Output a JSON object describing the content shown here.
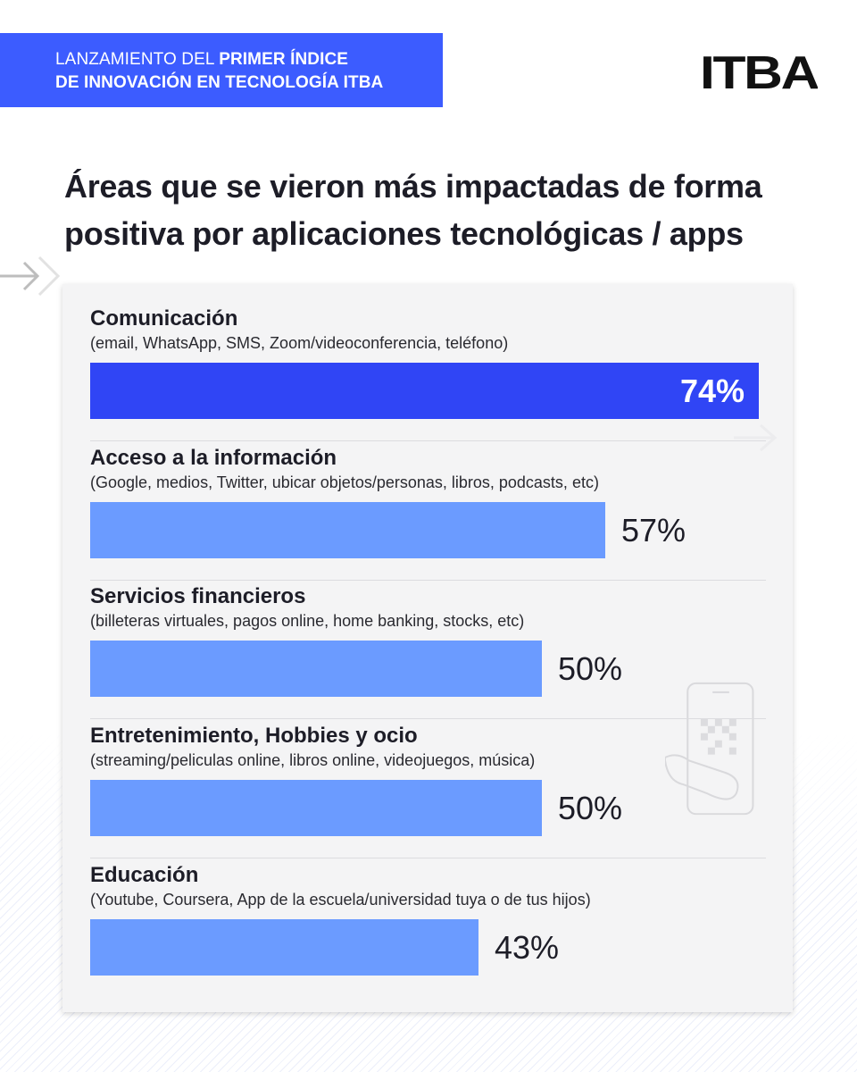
{
  "banner": {
    "line1_normal": "LANZAMIENTO DEL ",
    "line1_bold": "PRIMER ÍNDICE",
    "line2": "DE INNOVACIÓN EN TECNOLOGÍA ITBA"
  },
  "logo": {
    "text": "ITBA"
  },
  "title": "Áreas que se vieron más impactadas de forma positiva por aplicaciones tecnológicas / apps",
  "colors": {
    "banner": "#3c5cff",
    "top_bar": "#3045f5",
    "bar": "#6b9bff",
    "card": "#f4f4f5"
  },
  "icons": [
    "double-arrow-icon",
    "arrow-right-icon",
    "phone-qr-icon"
  ],
  "chart_data": {
    "type": "bar",
    "orientation": "horizontal",
    "categories": [
      "Comunicación",
      "Acceso a la información",
      "Servicios financieros",
      "Entretenimiento, Hobbies y ocio",
      "Educación"
    ],
    "subtitles": [
      "(email, WhatsApp, SMS, Zoom/videoconferencia, teléfono)",
      "(Google, medios, Twitter, ubicar objetos/personas, libros, podcasts, etc)",
      "(billeteras virtuales, pagos online, home banking, stocks, etc)",
      "(streaming/peliculas online, libros online, videojuegos, música)",
      "(Youtube, Coursera, App de la escuela/universidad tuya o de tus hijos)"
    ],
    "values": [
      74,
      57,
      50,
      50,
      43
    ],
    "value_labels": [
      "74%",
      "57%",
      "50%",
      "50%",
      "43%"
    ],
    "unit": "%",
    "xlim": [
      0,
      74
    ]
  }
}
